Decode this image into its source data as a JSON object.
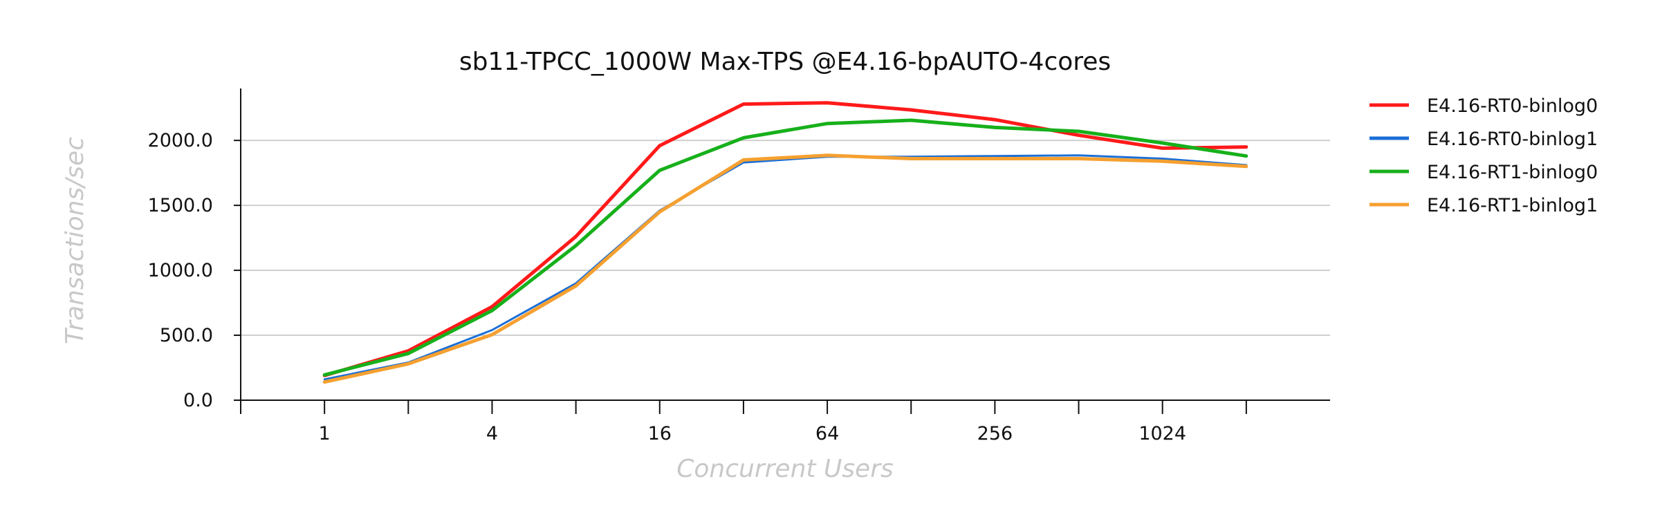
{
  "chart_data": {
    "type": "line",
    "title": "sb11-TPCC_1000W Max-TPS @E4.16-bpAUTO-4cores",
    "xlabel": "Concurrent Users",
    "ylabel": "Transactions/sec",
    "x": [
      1,
      2,
      4,
      8,
      16,
      32,
      64,
      128,
      256,
      512,
      1024,
      2048
    ],
    "x_tick_labels": [
      "1",
      "4",
      "16",
      "64",
      "256",
      "1024"
    ],
    "x_tick_values": [
      1,
      4,
      16,
      64,
      256,
      1024
    ],
    "xscale": "log2",
    "xlim": [
      0.5,
      4096
    ],
    "ylim": [
      0,
      2400
    ],
    "y_ticks": [
      0,
      500,
      1000,
      1500,
      2000
    ],
    "y_tick_labels": [
      "0.0",
      "500.0",
      "1000.0",
      "1500.0",
      "2000.0"
    ],
    "grid": "horizontal",
    "legend_position": "right",
    "series": [
      {
        "name": "E4.16-RT0-binlog0",
        "color": "#ff1a1a",
        "width": 5,
        "values": [
          190,
          380,
          720,
          1260,
          1960,
          2280,
          2290,
          2235,
          2160,
          2040,
          1940,
          1950
        ]
      },
      {
        "name": "E4.16-RT0-binlog1",
        "color": "#1b6fd6",
        "width": 3,
        "values": [
          160,
          290,
          540,
          900,
          1460,
          1830,
          1875,
          1875,
          1880,
          1885,
          1860,
          1810
        ]
      },
      {
        "name": "E4.16-RT1-binlog0",
        "color": "#17b01b",
        "width": 5,
        "values": [
          195,
          360,
          690,
          1190,
          1770,
          2020,
          2130,
          2155,
          2100,
          2070,
          1980,
          1880
        ]
      },
      {
        "name": "E4.16-RT1-binlog1",
        "color": "#f5a030",
        "width": 5,
        "values": [
          140,
          280,
          505,
          880,
          1450,
          1850,
          1885,
          1860,
          1860,
          1860,
          1840,
          1800
        ]
      }
    ]
  }
}
